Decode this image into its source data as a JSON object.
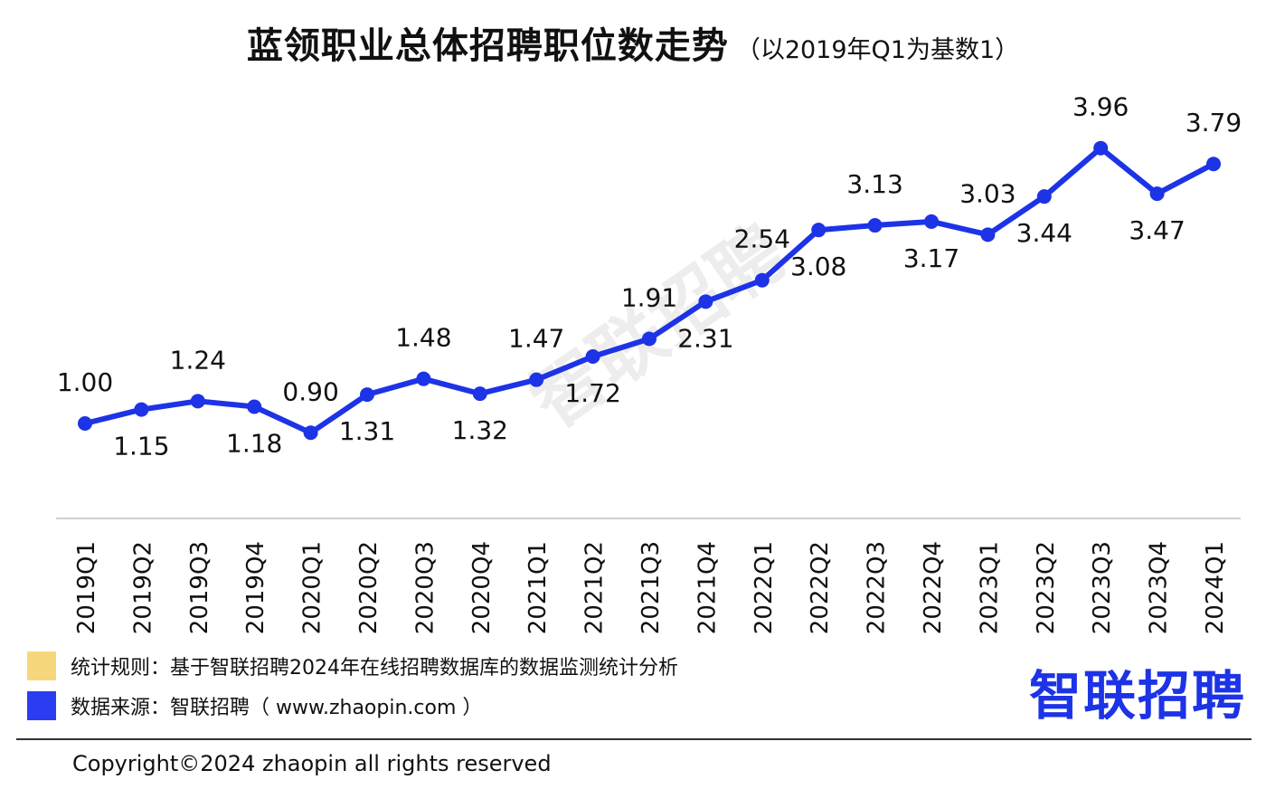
{
  "header": {
    "title": "蓝领职业总体招聘职位数走势",
    "subtitle": "（以2019年Q1为基数1）"
  },
  "chart_data": {
    "type": "line",
    "title": "蓝领职业总体招聘职位数走势",
    "subtitle": "（以2019年Q1为基数1）",
    "categories": [
      "2019Q1",
      "2019Q2",
      "2019Q3",
      "2019Q4",
      "2020Q1",
      "2020Q2",
      "2020Q3",
      "2020Q4",
      "2021Q1",
      "2021Q2",
      "2021Q3",
      "2021Q4",
      "2022Q1",
      "2022Q2",
      "2022Q3",
      "2022Q4",
      "2023Q1",
      "2023Q2",
      "2023Q3",
      "2023Q4",
      "2024Q1"
    ],
    "series": [
      {
        "values": [
          1.0,
          1.15,
          1.24,
          1.18,
          0.9,
          1.31,
          1.48,
          1.32,
          1.47,
          1.72,
          1.91,
          2.31,
          2.54,
          3.08,
          3.13,
          3.17,
          3.03,
          3.44,
          3.96,
          3.47,
          3.79
        ],
        "labels": [
          "1.00",
          "1.15",
          "1.24",
          "1.18",
          "0.90",
          "1.31",
          "1.48",
          "1.32",
          "1.47",
          "1.72",
          "1.91",
          "2.31",
          "2.54",
          "3.08",
          "3.13",
          "3.17",
          "3.03",
          "3.44",
          "3.96",
          "3.47",
          "3.79"
        ],
        "label_positions": [
          "above",
          "below",
          "above",
          "below",
          "above",
          "below",
          "above",
          "below",
          "above",
          "below",
          "above",
          "below",
          "above",
          "below",
          "above",
          "below",
          "above",
          "below",
          "above",
          "below",
          "above"
        ],
        "color": "#1d33e6"
      }
    ],
    "xlabel": "",
    "ylabel": "",
    "grid": false,
    "legend": "none"
  },
  "notes": {
    "rule_label": "统计规则：基于智联招聘2024年在线招聘数据库的数据监测统计分析",
    "rule_color": "#f7d77c",
    "source_label": "数据来源：智联招聘（ www.zhaopin.com ）",
    "source_color": "#2a3df0"
  },
  "logo": {
    "text": "智联招聘"
  },
  "watermark": {
    "text": "智联招聘"
  },
  "footer": {
    "copyright": "Copyright©2024 zhaopin all rights reserved"
  }
}
